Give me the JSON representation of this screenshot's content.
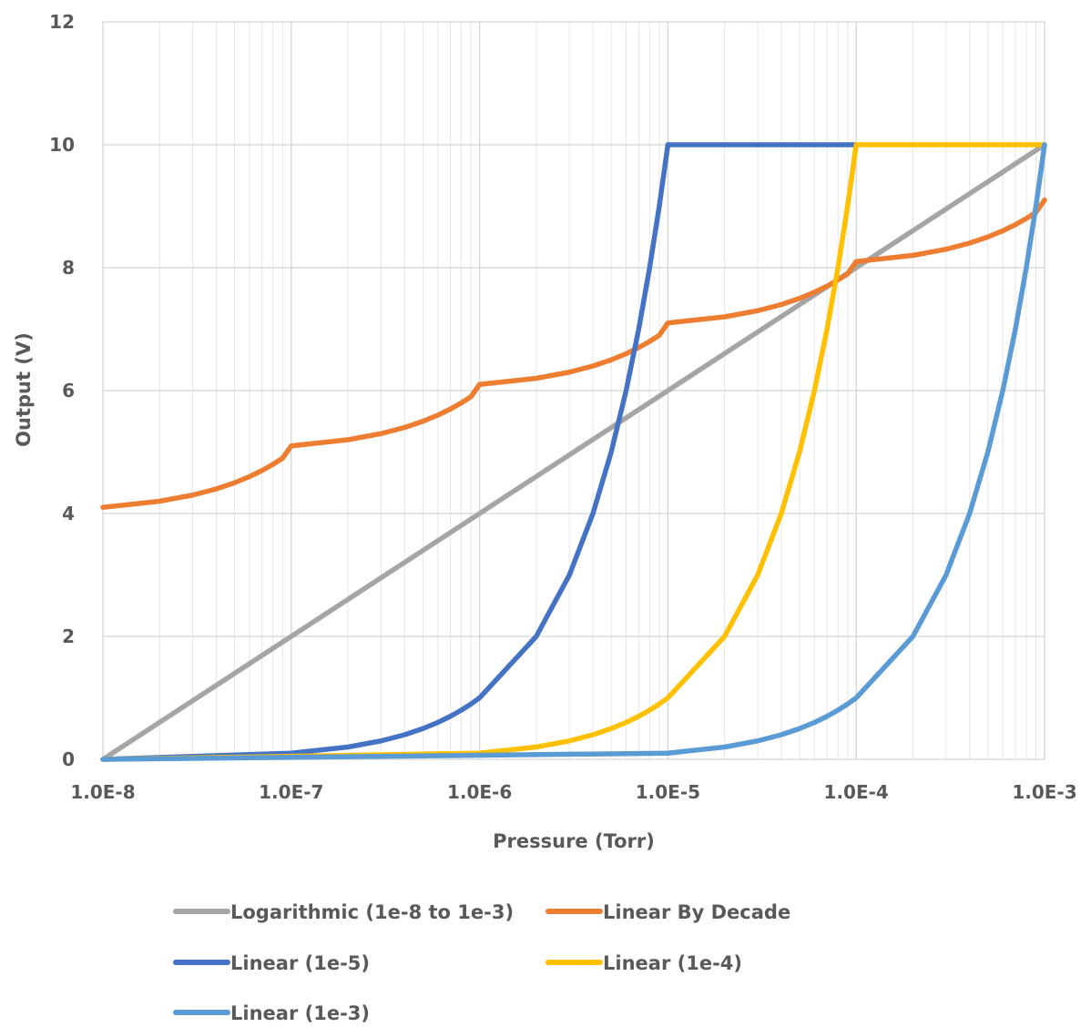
{
  "chart_data": {
    "type": "line",
    "title": "",
    "xlabel": "Pressure (Torr)",
    "ylabel": "Output (V)",
    "x_scale": "log",
    "xlim": [
      1e-08,
      0.001
    ],
    "ylim": [
      0,
      12
    ],
    "x_tick_values": [
      1e-08,
      1e-07,
      1e-06,
      1e-05,
      0.0001,
      0.001
    ],
    "x_tick_labels": [
      "1.0E-8",
      "1.0E-7",
      "1.0E-6",
      "1.0E-5",
      "1.0E-4",
      "1.0E-3"
    ],
    "y_ticks": [
      0,
      2,
      4,
      6,
      8,
      10,
      12
    ],
    "y_tick_labels": [
      "0",
      "2",
      "4",
      "6",
      "8",
      "10",
      "12"
    ],
    "grid": true,
    "legend_position": "bottom",
    "series": [
      {
        "name": "Logarithmic (1e-8 to 1e-3)",
        "color": "#A5A5A5",
        "x": [
          1e-08,
          0.001
        ],
        "y": [
          0,
          10
        ]
      },
      {
        "name": "Linear By Decade",
        "color": "#ED7D31",
        "x": [
          1e-08,
          2e-08,
          3e-08,
          4e-08,
          5e-08,
          6e-08,
          7e-08,
          8e-08,
          9e-08,
          1e-07,
          2e-07,
          3e-07,
          4e-07,
          5e-07,
          6e-07,
          7e-07,
          8e-07,
          9e-07,
          1e-06,
          2e-06,
          3e-06,
          4e-06,
          5e-06,
          6e-06,
          7e-06,
          8e-06,
          9e-06,
          1e-05,
          2e-05,
          3e-05,
          4e-05,
          5e-05,
          6e-05,
          7e-05,
          8e-05,
          9e-05,
          0.0001,
          0.0002,
          0.0003,
          0.0004,
          0.0005,
          0.0006,
          0.0007,
          0.0008,
          0.0009,
          0.001
        ],
        "y": [
          4.1,
          4.2,
          4.3,
          4.4,
          4.5,
          4.6,
          4.7,
          4.8,
          4.9,
          5.1,
          5.2,
          5.3,
          5.4,
          5.5,
          5.6,
          5.7,
          5.8,
          5.9,
          6.1,
          6.2,
          6.3,
          6.4,
          6.5,
          6.6,
          6.7,
          6.8,
          6.9,
          7.1,
          7.2,
          7.3,
          7.4,
          7.5,
          7.6,
          7.7,
          7.8,
          7.9,
          8.1,
          8.2,
          8.3,
          8.4,
          8.5,
          8.6,
          8.7,
          8.8,
          8.9,
          9.1
        ]
      },
      {
        "name": "Linear (1e-5)",
        "color": "#4472C4",
        "x": [
          1e-08,
          1e-07,
          2e-07,
          3e-07,
          4e-07,
          5e-07,
          6e-07,
          7e-07,
          8e-07,
          9e-07,
          1e-06,
          2e-06,
          3e-06,
          4e-06,
          5e-06,
          6e-06,
          7e-06,
          8e-06,
          9e-06,
          1e-05,
          0.0001
        ],
        "y": [
          0,
          0.1,
          0.2,
          0.3,
          0.4,
          0.5,
          0.6,
          0.7,
          0.8,
          0.9,
          1,
          2,
          3,
          4,
          5,
          6,
          7,
          8,
          9,
          10,
          10
        ]
      },
      {
        "name": "Linear (1e-4)",
        "color": "#FFC000",
        "x": [
          1e-08,
          1e-06,
          2e-06,
          3e-06,
          4e-06,
          5e-06,
          6e-06,
          7e-06,
          8e-06,
          9e-06,
          1e-05,
          2e-05,
          3e-05,
          4e-05,
          5e-05,
          6e-05,
          7e-05,
          8e-05,
          9e-05,
          0.0001,
          0.001
        ],
        "y": [
          0,
          0.1,
          0.2,
          0.3,
          0.4,
          0.5,
          0.6,
          0.7,
          0.8,
          0.9,
          1,
          2,
          3,
          4,
          5,
          6,
          7,
          8,
          9,
          10,
          10
        ]
      },
      {
        "name": "Linear (1e-3)",
        "color": "#5B9BD5",
        "x": [
          1e-08,
          1e-05,
          2e-05,
          3e-05,
          4e-05,
          5e-05,
          6e-05,
          7e-05,
          8e-05,
          9e-05,
          0.0001,
          0.0002,
          0.0003,
          0.0004,
          0.0005,
          0.0006,
          0.0007,
          0.0008,
          0.0009,
          0.001
        ],
        "y": [
          0,
          0.1,
          0.2,
          0.3,
          0.4,
          0.5,
          0.6,
          0.7,
          0.8,
          0.9,
          1,
          2,
          3,
          4,
          5,
          6,
          7,
          8,
          9,
          10
        ]
      }
    ]
  }
}
